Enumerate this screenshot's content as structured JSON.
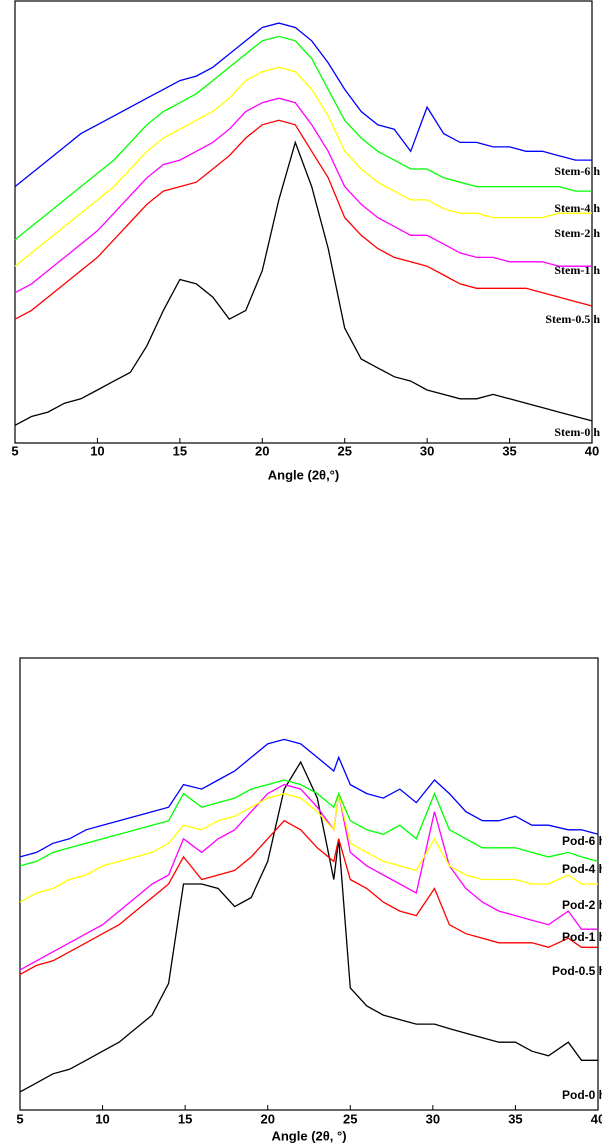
{
  "chart_data": [
    {
      "type": "line",
      "xlabel": "Angle (2θ,°)",
      "xlim": [
        5,
        40
      ],
      "xticks": [
        5,
        10,
        15,
        20,
        25,
        30,
        35,
        40
      ],
      "ylim": [
        0,
        100
      ],
      "x": [
        5,
        6,
        7,
        8,
        9,
        10,
        11,
        12,
        13,
        14,
        15,
        16,
        17,
        18,
        19,
        20,
        21,
        22,
        23,
        24,
        25,
        26,
        27,
        28,
        29,
        30,
        31,
        32,
        33,
        34,
        35,
        36,
        37,
        38,
        39,
        40
      ],
      "series": [
        {
          "name": "Stem-0 h",
          "color": "#000000",
          "values": [
            4,
            6,
            7,
            9,
            10,
            12,
            14,
            16,
            22,
            30,
            37,
            36,
            33,
            28,
            30,
            39,
            55,
            68,
            58,
            44,
            26,
            19,
            17,
            15,
            14,
            12,
            11,
            10,
            10,
            11,
            10,
            9,
            8,
            7,
            6,
            5
          ]
        },
        {
          "name": "Stem-0.5 h",
          "color": "#ff0000",
          "values": [
            28,
            30,
            33,
            36,
            39,
            42,
            46,
            50,
            54,
            57,
            58,
            59,
            62,
            65,
            69,
            72,
            73,
            72,
            66,
            60,
            51,
            47,
            44,
            42,
            41,
            40,
            38,
            36,
            35,
            35,
            35,
            35,
            34,
            33,
            32,
            31
          ]
        },
        {
          "name": "Stem-1 h",
          "color": "#ff00ff",
          "values": [
            34,
            36,
            39,
            42,
            45,
            48,
            52,
            56,
            60,
            63,
            64,
            66,
            68,
            71,
            75,
            77,
            78,
            77,
            72,
            66,
            58,
            54,
            51,
            49,
            47,
            47,
            45,
            43,
            42,
            42,
            41,
            41,
            41,
            40,
            40,
            40
          ]
        },
        {
          "name": "Stem-2 h",
          "color": "#ffff00",
          "values": [
            40,
            43,
            46,
            49,
            52,
            55,
            58,
            62,
            66,
            69,
            71,
            73,
            75,
            78,
            82,
            84,
            85,
            84,
            80,
            74,
            66,
            62,
            59,
            57,
            55,
            55,
            53,
            52,
            52,
            51,
            51,
            51,
            51,
            52,
            52,
            52
          ]
        },
        {
          "name": "Stem-4 h",
          "color": "#00ff00",
          "values": [
            46,
            49,
            52,
            55,
            58,
            61,
            64,
            68,
            72,
            75,
            77,
            79,
            82,
            85,
            88,
            91,
            92,
            91,
            87,
            80,
            73,
            69,
            66,
            64,
            62,
            62,
            60,
            59,
            58,
            58,
            58,
            58,
            58,
            58,
            57,
            57
          ]
        },
        {
          "name": "Stem-6 h",
          "color": "#0000ff",
          "values": [
            58,
            61,
            64,
            67,
            70,
            72,
            74,
            76,
            78,
            80,
            82,
            83,
            85,
            88,
            91,
            94,
            95,
            94,
            91,
            86,
            80,
            75,
            72,
            71,
            66,
            76,
            70,
            68,
            68,
            67,
            67,
            66,
            66,
            65,
            64,
            64
          ]
        }
      ]
    },
    {
      "type": "line",
      "xlabel": "Angle (2θ, °)",
      "xlim": [
        5,
        40
      ],
      "xticks": [
        5,
        10,
        15,
        20,
        25,
        30,
        35,
        40
      ],
      "ylim": [
        0,
        100
      ],
      "x": [
        5,
        6,
        7,
        8,
        9,
        10,
        11,
        12,
        13,
        14,
        14.9,
        16,
        17,
        18,
        19,
        20,
        21,
        22,
        23,
        24,
        24.3,
        25,
        26,
        27,
        28,
        29,
        30.1,
        31,
        32,
        33,
        34,
        35,
        36,
        37,
        38.2,
        39,
        40
      ],
      "series": [
        {
          "name": "Pod-0 h",
          "color": "#000000",
          "values": [
            4,
            6,
            8,
            9,
            11,
            13,
            15,
            18,
            21,
            28,
            50,
            50,
            49,
            45,
            47,
            55,
            71,
            77,
            69,
            51,
            60,
            27,
            23,
            21,
            20,
            19,
            19,
            18,
            17,
            16,
            15,
            15,
            13,
            12,
            15,
            11,
            11
          ]
        },
        {
          "name": "Pod-0.5 h",
          "color": "#ff0000",
          "values": [
            30,
            32,
            33,
            35,
            37,
            39,
            41,
            44,
            47,
            50,
            56,
            51,
            52,
            53,
            56,
            60,
            64,
            62,
            58,
            55,
            60,
            51,
            49,
            46,
            44,
            43,
            49,
            41,
            39,
            38,
            37,
            37,
            37,
            36,
            38,
            36,
            36
          ]
        },
        {
          "name": "Pod-1 h",
          "color": "#ff00ff",
          "values": [
            31,
            33,
            35,
            37,
            39,
            41,
            44,
            47,
            50,
            52,
            60,
            57,
            60,
            62,
            66,
            70,
            72,
            71,
            67,
            62,
            70,
            57,
            54,
            52,
            50,
            48,
            66,
            54,
            49,
            46,
            44,
            43,
            42,
            41,
            44,
            40,
            40
          ]
        },
        {
          "name": "Pod-2 h",
          "color": "#ffff00",
          "values": [
            46,
            48,
            49,
            51,
            52,
            54,
            55,
            56,
            57,
            59,
            63,
            62,
            64,
            65,
            67,
            69,
            70,
            69,
            66,
            62,
            70,
            59,
            57,
            55,
            54,
            53,
            60,
            54,
            52,
            51,
            51,
            51,
            50,
            50,
            52,
            50,
            50
          ]
        },
        {
          "name": "Pod-4 h",
          "color": "#00ff00",
          "values": [
            54,
            55,
            57,
            58,
            59,
            60,
            61,
            62,
            63,
            64,
            70,
            67,
            68,
            69,
            71,
            72,
            73,
            72,
            70,
            67,
            70,
            64,
            62,
            61,
            63,
            60,
            70,
            62,
            60,
            58,
            58,
            58,
            57,
            56,
            57,
            56,
            55
          ]
        },
        {
          "name": "Pod-6 h",
          "color": "#0000ff",
          "values": [
            56,
            57,
            59,
            60,
            62,
            63,
            64,
            65,
            66,
            67,
            72,
            71,
            73,
            75,
            78,
            81,
            82,
            81,
            78,
            75,
            78,
            72,
            70,
            69,
            71,
            68,
            73,
            70,
            66,
            64,
            64,
            65,
            63,
            63,
            62,
            62,
            61
          ]
        }
      ]
    }
  ]
}
